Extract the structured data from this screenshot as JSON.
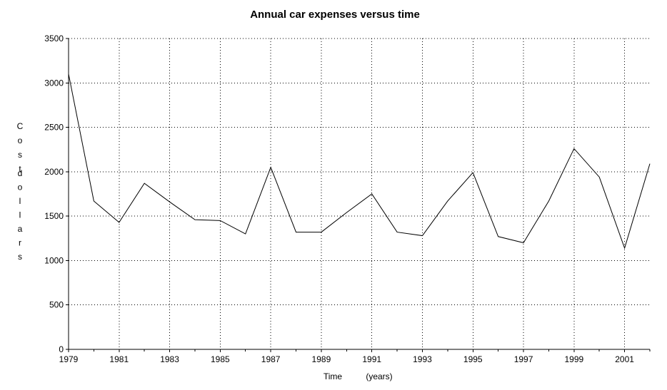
{
  "chart_data": {
    "type": "line",
    "title": "Annual car expenses versus time",
    "xlabel": "Time",
    "xlabel_unit": "(years)",
    "ylabel": "Cost",
    "ylabel_unit": "dollars",
    "xlim": [
      1979,
      2002
    ],
    "ylim": [
      0,
      3500
    ],
    "x_ticks": [
      1979,
      1981,
      1983,
      1985,
      1987,
      1989,
      1991,
      1993,
      1995,
      1997,
      1999,
      2001
    ],
    "y_ticks": [
      0,
      500,
      1000,
      1500,
      2000,
      2500,
      3000,
      3500
    ],
    "grid": true,
    "grid_style": "dotted",
    "line_color": "#000000",
    "x": [
      1979,
      1980,
      1981,
      1982,
      1983,
      1984,
      1985,
      1986,
      1987,
      1988,
      1989,
      1990,
      1991,
      1992,
      1993,
      1994,
      1995,
      1996,
      1997,
      1998,
      1999,
      2000,
      2001,
      2002
    ],
    "series": [
      {
        "values": [
          3100,
          1670,
          1430,
          1870,
          1660,
          1460,
          1450,
          1300,
          2050,
          1320,
          1320,
          1540,
          1750,
          1320,
          1280,
          1670,
          1990,
          1270,
          1200,
          1670,
          2260,
          1940,
          1140,
          2090
        ]
      }
    ]
  }
}
